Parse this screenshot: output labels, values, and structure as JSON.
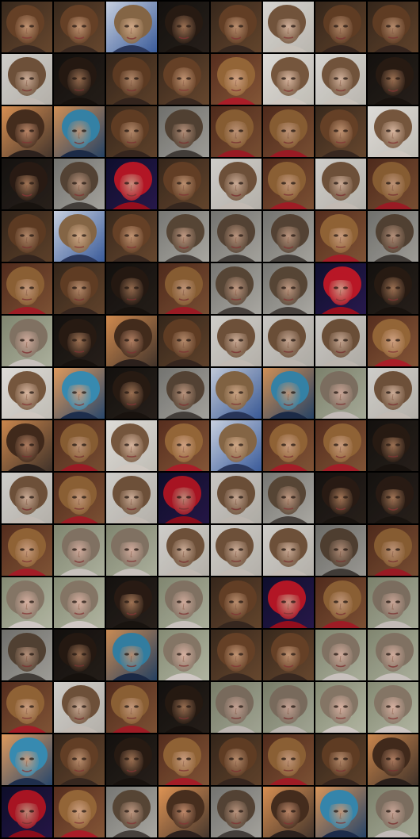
{
  "grid": {
    "rows": 16,
    "cols": 8
  },
  "palettes": {
    "warm": {
      "bg": "#3a2a1e",
      "bg2": "#6b4a30",
      "skin": "#c99a78",
      "hair": "#6a4328",
      "shirt": "#3b2a22"
    },
    "bright": {
      "bg": "#e6e4e0",
      "bg2": "#c8c4bc",
      "skin": "#e2bfa8",
      "hair": "#7a5a40",
      "shirt": "#d8d0c8"
    },
    "blue": {
      "bg": "#cfd8e8",
      "bg2": "#3d5fa0",
      "skin": "#d9b08e",
      "hair": "#8a6a48",
      "shirt": "#2c3a60"
    },
    "dark": {
      "bg": "#151210",
      "bg2": "#2a221c",
      "skin": "#a87a5a",
      "hair": "#2a1c14",
      "shirt": "#1a1410"
    },
    "red": {
      "bg": "#5a3020",
      "bg2": "#8a5a3a",
      "skin": "#d8a888",
      "hair": "#9a6a3a",
      "shirt": "#b0202a"
    },
    "redhat": {
      "bg": "#101030",
      "bg2": "#2a1a50",
      "skin": "#d89a88",
      "hair": "#c01828",
      "shirt": "#a01020"
    },
    "teal": {
      "bg": "#e8a060",
      "bg2": "#2a4a70",
      "skin": "#d0a080",
      "hair": "#3a90b8",
      "shirt": "#203050"
    },
    "green": {
      "bg": "#8a9078",
      "bg2": "#b8bca8",
      "skin": "#e0b8a8",
      "hair": "#8a7a6a",
      "shirt": "#d8d0cc"
    },
    "gray": {
      "bg": "#7c7c78",
      "bg2": "#b0aea8",
      "skin": "#c8a088",
      "hair": "#5a4838",
      "shirt": "#4a4440"
    },
    "orange": {
      "bg": "#e89a58",
      "bg2": "#4a3a30",
      "skin": "#c89070",
      "hair": "#4a3020",
      "shirt": "#302420"
    }
  },
  "tiles": [
    [
      "warm",
      "warm",
      "blue",
      "dark",
      "warm",
      "bright",
      "warm",
      "warm"
    ],
    [
      "bright",
      "dark",
      "warm",
      "warm",
      "red",
      "bright",
      "bright",
      "dark"
    ],
    [
      "orange",
      "teal",
      "warm",
      "gray",
      "red",
      "red",
      "warm",
      "bright"
    ],
    [
      "dark",
      "gray",
      "redhat",
      "warm",
      "bright",
      "red",
      "bright",
      "red"
    ],
    [
      "warm",
      "blue",
      "warm",
      "gray",
      "gray",
      "gray",
      "red",
      "gray"
    ],
    [
      "red",
      "warm",
      "dark",
      "red",
      "gray",
      "gray",
      "redhat",
      "dark"
    ],
    [
      "green",
      "dark",
      "orange",
      "warm",
      "bright",
      "bright",
      "bright",
      "red"
    ],
    [
      "bright",
      "teal",
      "dark",
      "gray",
      "blue",
      "teal",
      "green",
      "bright"
    ],
    [
      "orange",
      "red",
      "bright",
      "red",
      "blue",
      "red",
      "red",
      "dark"
    ],
    [
      "bright",
      "red",
      "bright",
      "redhat",
      "bright",
      "gray",
      "dark",
      "dark"
    ],
    [
      "red",
      "green",
      "green",
      "bright",
      "bright",
      "bright",
      "gray",
      "red"
    ],
    [
      "green",
      "green",
      "dark",
      "green",
      "warm",
      "redhat",
      "red",
      "green"
    ],
    [
      "gray",
      "dark",
      "teal",
      "green",
      "warm",
      "warm",
      "green",
      "green"
    ],
    [
      "red",
      "bright",
      "red",
      "dark",
      "green",
      "green",
      "green",
      "green"
    ],
    [
      "teal",
      "warm",
      "dark",
      "red",
      "warm",
      "red",
      "warm",
      "orange"
    ],
    [
      "redhat",
      "red",
      "gray",
      "orange",
      "gray",
      "orange",
      "teal",
      "green"
    ]
  ]
}
